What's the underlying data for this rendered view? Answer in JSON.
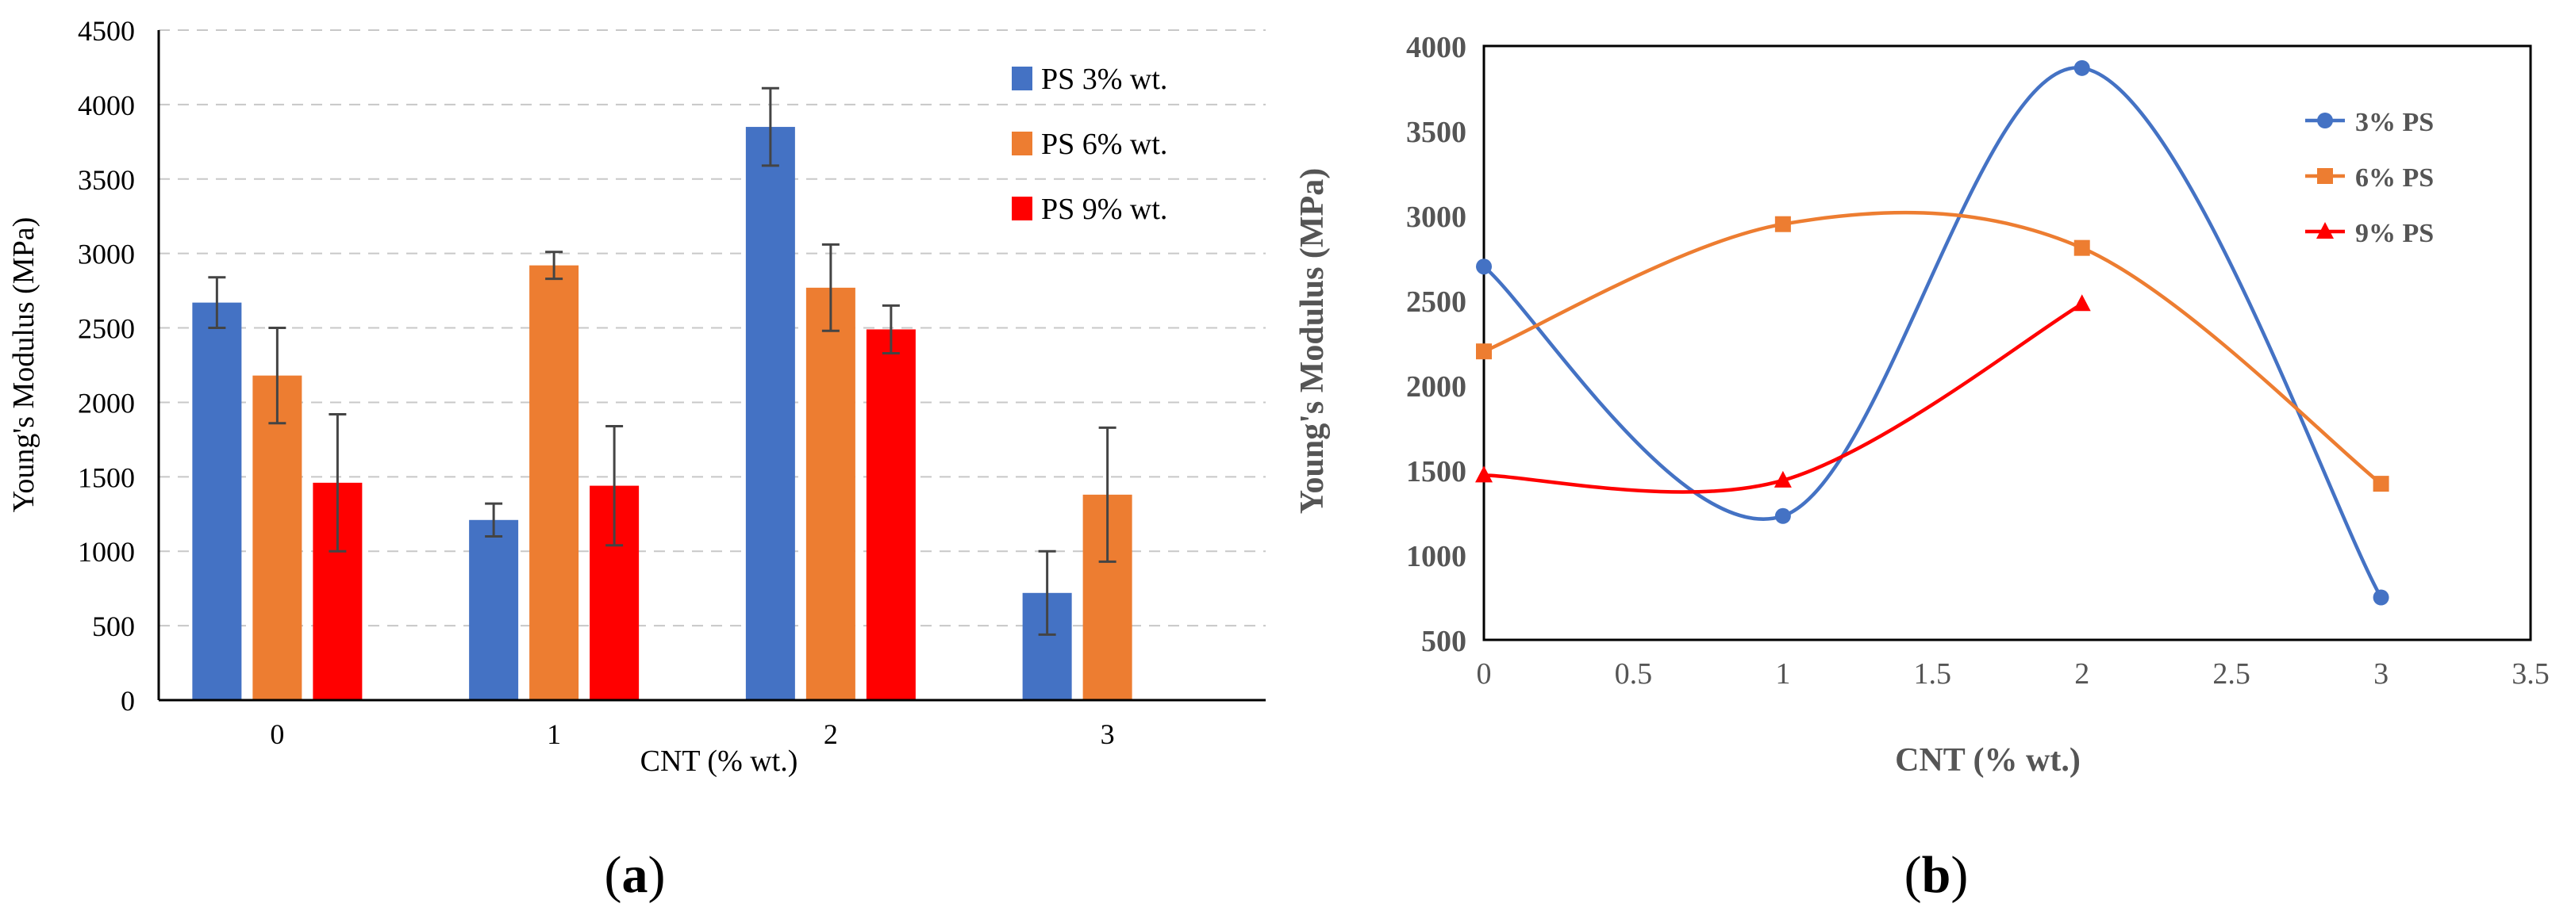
{
  "panel_a": {
    "label": "a",
    "chart_data": {
      "type": "bar",
      "title": "",
      "xlabel": "CNT (% wt.)",
      "ylabel": "Young's Modulus (MPa)",
      "ylim": [
        0,
        4500
      ],
      "yticks": [
        0,
        500,
        1000,
        1500,
        2000,
        2500,
        3000,
        3500,
        4000,
        4500
      ],
      "categories": [
        "0",
        "1",
        "2",
        "3"
      ],
      "gridlines": true,
      "legend_position": "top-right",
      "series": [
        {
          "name": "PS 3% wt.",
          "color": "#4472c4",
          "values": [
            2670,
            1210,
            3850,
            720
          ],
          "errors": [
            170,
            110,
            260,
            280
          ]
        },
        {
          "name": "PS 6% wt.",
          "color": "#ed7d31",
          "values": [
            2180,
            2920,
            2770,
            1380
          ],
          "errors": [
            320,
            90,
            290,
            450
          ]
        },
        {
          "name": "PS 9% wt.",
          "color": "#ff0000",
          "values": [
            1460,
            1440,
            2490,
            null
          ],
          "errors": [
            460,
            400,
            160,
            null
          ]
        }
      ]
    }
  },
  "panel_b": {
    "label": "b",
    "chart_data": {
      "type": "line",
      "title": "",
      "xlabel": "CNT (% wt.)",
      "ylabel": "Young's Modulus (MPa)",
      "xlim": [
        0,
        3.5
      ],
      "ylim": [
        500,
        4000
      ],
      "xticks": [
        0,
        0.5,
        1,
        1.5,
        2,
        2.5,
        3,
        3.5
      ],
      "xtick_labels": [
        "0",
        "0.5",
        "1",
        "1.5",
        "2",
        "2.5",
        "3",
        "3.5"
      ],
      "yticks": [
        500,
        1000,
        1500,
        2000,
        2500,
        3000,
        3500,
        4000
      ],
      "legend_position": "top-right",
      "smooth": true,
      "series": [
        {
          "name": "3% PS",
          "color": "#4472c4",
          "marker": "circle",
          "x": [
            0,
            1,
            2,
            3
          ],
          "y": [
            2700,
            1230,
            3870,
            750
          ]
        },
        {
          "name": "6% PS",
          "color": "#ed7d31",
          "marker": "square",
          "x": [
            0,
            1,
            2,
            3
          ],
          "y": [
            2200,
            2950,
            2810,
            1420
          ]
        },
        {
          "name": "9% PS",
          "color": "#ff0000",
          "marker": "triangle",
          "x": [
            0,
            1,
            2
          ],
          "y": [
            1470,
            1440,
            2480
          ]
        }
      ]
    }
  }
}
